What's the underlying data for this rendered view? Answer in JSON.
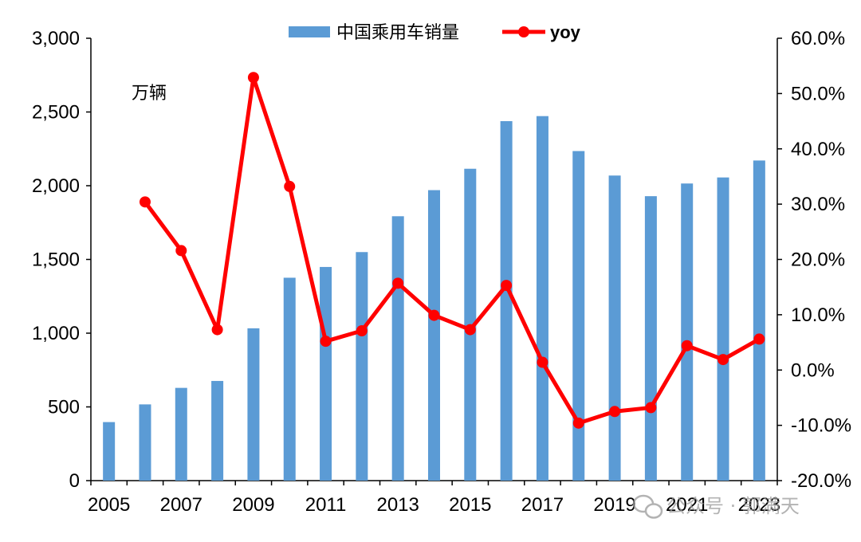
{
  "chart_data": {
    "type": "bar+line",
    "unit_label": "万辆",
    "categories": [
      "2005",
      "2006",
      "2007",
      "2008",
      "2009",
      "2010",
      "2011",
      "2012",
      "2013",
      "2014",
      "2015",
      "2016",
      "2017",
      "2018",
      "2019",
      "2020",
      "2021",
      "2022",
      "2023"
    ],
    "x_tick_labels": [
      "2005",
      "2007",
      "2009",
      "2011",
      "2013",
      "2015",
      "2017",
      "2019",
      "2021",
      "2023"
    ],
    "series": [
      {
        "name": "中国乘用车销量",
        "kind": "bar",
        "axis": "left",
        "color": "#5b9bd5",
        "values": [
          397,
          517,
          629,
          676,
          1033,
          1376,
          1449,
          1550,
          1793,
          1970,
          2115,
          2438,
          2472,
          2235,
          2069,
          1929,
          2015,
          2056,
          2171
        ]
      },
      {
        "name": "yoy",
        "kind": "line",
        "axis": "right",
        "color": "#ff0000",
        "values": [
          null,
          30.4,
          21.6,
          7.3,
          52.9,
          33.2,
          5.2,
          7.1,
          15.7,
          9.9,
          7.3,
          15.3,
          1.4,
          -9.6,
          -7.5,
          -6.8,
          4.4,
          1.9,
          5.6
        ]
      }
    ],
    "y_left": {
      "min": 0,
      "max": 3000,
      "ticks": [
        0,
        500,
        1000,
        1500,
        2000,
        2500,
        3000
      ],
      "tick_labels": [
        "0",
        "500",
        "1,000",
        "1,500",
        "2,000",
        "2,500",
        "3,000"
      ]
    },
    "y_right": {
      "min": -20,
      "max": 60,
      "ticks": [
        -20,
        -10,
        0,
        10,
        20,
        30,
        40,
        50,
        60
      ],
      "tick_labels": [
        "-20.0%",
        "-10.0%",
        "0.0%",
        "10.0%",
        "20.0%",
        "30.0%",
        "40.0%",
        "50.0%",
        "60.0%"
      ]
    },
    "legend_position": "top-center",
    "grid": false
  },
  "watermark": {
    "icon": "wechat-icon",
    "text": "公众号 · 郭满天"
  }
}
